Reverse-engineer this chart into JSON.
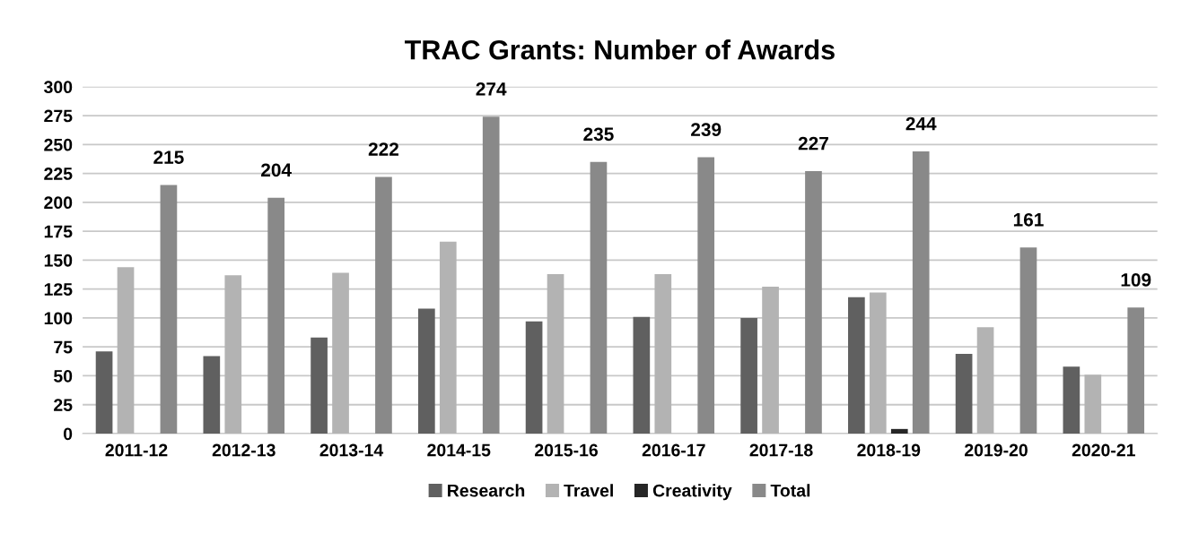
{
  "chart_data": {
    "type": "bar",
    "title": "TRAC Grants: Number of Awards",
    "categories": [
      "2011-12",
      "2012-13",
      "2013-14",
      "2014-15",
      "2015-16",
      "2016-17",
      "2017-18",
      "2018-19",
      "2019-20",
      "2020-21"
    ],
    "series": [
      {
        "name": "Research",
        "color": "#606060",
        "values": [
          71,
          67,
          83,
          108,
          97,
          101,
          100,
          118,
          69,
          58
        ]
      },
      {
        "name": "Travel",
        "color": "#b3b3b3",
        "values": [
          144,
          137,
          139,
          166,
          138,
          138,
          127,
          122,
          92,
          51
        ]
      },
      {
        "name": "Creativity",
        "color": "#262626",
        "values": [
          0,
          0,
          0,
          0,
          0,
          0,
          0,
          4,
          0,
          0
        ]
      },
      {
        "name": "Total",
        "color": "#898989",
        "values": [
          215,
          204,
          222,
          274,
          235,
          239,
          227,
          244,
          161,
          109
        ],
        "value_labels": [
          "215",
          "204",
          "222",
          "274",
          "235",
          "239",
          "227",
          "244",
          "161",
          "109"
        ]
      }
    ],
    "ylim": [
      0,
      300
    ],
    "yticks": [
      0,
      25,
      50,
      75,
      100,
      125,
      150,
      175,
      200,
      225,
      250,
      275,
      300
    ],
    "grid": "y",
    "legend": "bottom"
  }
}
